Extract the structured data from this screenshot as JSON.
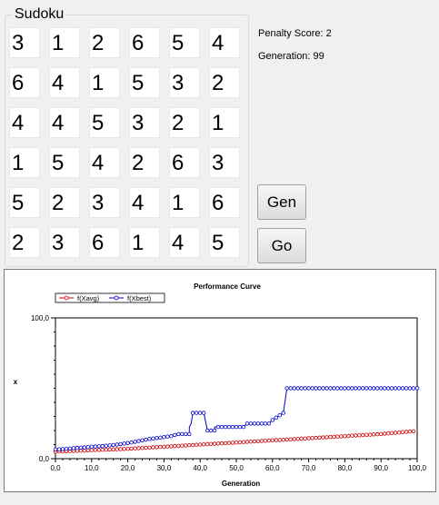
{
  "sudoku": {
    "title": "Sudoku",
    "grid": [
      [
        "3",
        "1",
        "2",
        "6",
        "5",
        "4"
      ],
      [
        "6",
        "4",
        "1",
        "5",
        "3",
        "2"
      ],
      [
        "4",
        "4",
        "5",
        "3",
        "2",
        "1"
      ],
      [
        "1",
        "5",
        "4",
        "2",
        "6",
        "3"
      ],
      [
        "5",
        "2",
        "3",
        "4",
        "1",
        "6"
      ],
      [
        "2",
        "3",
        "6",
        "1",
        "4",
        "5"
      ]
    ]
  },
  "status": {
    "penalty": "Penalty Score: 2",
    "generation": "Generation: 99"
  },
  "buttons": {
    "gen": "Gen",
    "go": "Go"
  },
  "chart_data": {
    "type": "line",
    "title": "Performance Curve",
    "xlabel": "Generation",
    "ylabel": "x",
    "xlim": [
      0,
      100
    ],
    "ylim": [
      0,
      100
    ],
    "x_ticks": [
      "0,0",
      "10,0",
      "20,0",
      "30,0",
      "40,0",
      "50,0",
      "60,0",
      "70,0",
      "80,0",
      "90,0",
      "100,0"
    ],
    "y_ticks": [
      "0,0",
      "100,0"
    ],
    "legend_position": "top-left",
    "series": [
      {
        "name": "f(Xavg)",
        "color": "#cc0000",
        "points": [
          [
            0,
            5
          ],
          [
            10,
            6
          ],
          [
            20,
            7
          ],
          [
            30,
            8.5
          ],
          [
            40,
            10
          ],
          [
            50,
            11.5
          ],
          [
            60,
            13
          ],
          [
            70,
            14.5
          ],
          [
            80,
            16
          ],
          [
            90,
            17.5
          ],
          [
            99,
            19.5
          ]
        ]
      },
      {
        "name": "f(Xbest)",
        "color": "#0000cc",
        "points": [
          [
            0,
            6.5
          ],
          [
            3,
            7
          ],
          [
            5,
            7.5
          ],
          [
            8,
            8
          ],
          [
            10,
            8.5
          ],
          [
            13,
            9
          ],
          [
            17,
            10
          ],
          [
            21,
            11.5
          ],
          [
            23,
            12.5
          ],
          [
            26,
            14
          ],
          [
            29,
            15
          ],
          [
            32,
            16
          ],
          [
            34,
            17.5
          ],
          [
            37,
            17.5
          ],
          [
            37,
            22.5
          ],
          [
            37.5,
            25
          ],
          [
            38,
            32.5
          ],
          [
            41,
            32.5
          ],
          [
            42,
            20
          ],
          [
            44,
            20
          ],
          [
            44,
            22.5
          ],
          [
            46,
            22.5
          ],
          [
            52,
            22.5
          ],
          [
            53,
            25
          ],
          [
            59,
            25
          ],
          [
            60,
            27.5
          ],
          [
            63,
            32.5
          ],
          [
            64,
            50
          ],
          [
            100,
            50
          ]
        ]
      }
    ]
  }
}
